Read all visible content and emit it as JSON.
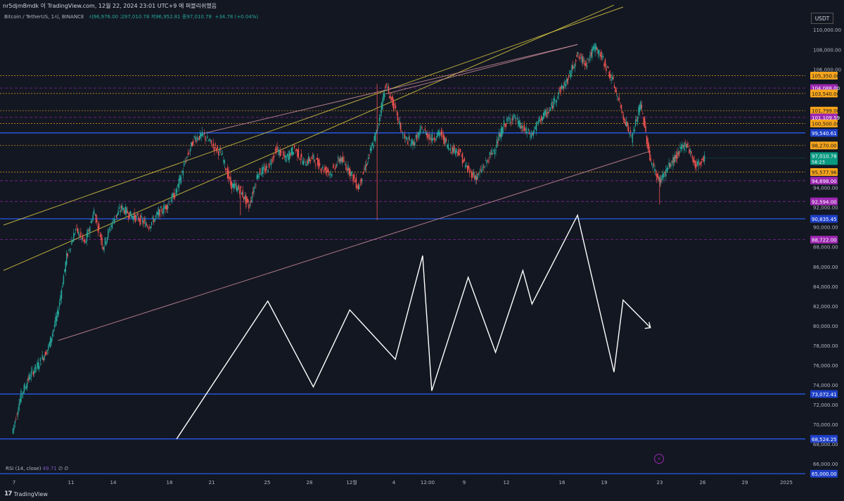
{
  "header": {
    "top_text": "nr5djm8mdk 이 TradingView.com, 12월 22, 2024 23:01 UTC+9 에 퍼블리쉬했음",
    "symbol": "Bitcoin / TetherUS, 1시, BINANCE",
    "ohlc_text": "시96,976.00  고97,010.78  저96,952.81  종97,010.78",
    "change_text": "+34.78 (+0.04%)",
    "currency": "USDT"
  },
  "rsi_label": "RSI (14, close)",
  "rsi_value": "49.71",
  "rsi_extra": "∅ ∅",
  "brand": "TradingView",
  "colors": {
    "background": "#131722",
    "up": "#26a69a",
    "down": "#ef5350",
    "blue_line": "#2962ff",
    "orange": "#f7a51c",
    "purple": "#9c27b0",
    "yellow": "#d4c441",
    "pink": "#c98a98",
    "white": "#ffffff",
    "teal_label": "#089981"
  },
  "chart_data": {
    "type": "line",
    "title": "Bitcoin / TetherUS, 1시, BINANCE",
    "y_axis_ticks": [
      "110,000.00",
      "108,000.00",
      "106,000.00",
      "94,000.00",
      "92,000.00",
      "90,000.00",
      "88,000.00",
      "86,000.00",
      "84,000.00",
      "82,000.00",
      "80,000.00",
      "78,000.00",
      "76,000.00",
      "74,000.00",
      "72,000.00",
      "70,000.00",
      "68,000.00",
      "66,000.00"
    ],
    "x_axis_ticks": [
      "7",
      "11",
      "14",
      "18",
      "21",
      "25",
      "28",
      "12월",
      "4",
      "12:00",
      "9",
      "12",
      "16",
      "19",
      "23",
      "26",
      "29",
      "2025"
    ],
    "current_price": {
      "label": "97,010.78",
      "countdown": "58:23",
      "value": 97010.78
    },
    "horizontal_levels": [
      {
        "label": "105,350.00",
        "value": 105350,
        "style": "dotted",
        "color": "orange"
      },
      {
        "label": "104,088.00",
        "value": 104088,
        "style": "dashed",
        "color": "purple"
      },
      {
        "label": "103,540.00",
        "value": 103540,
        "style": "dotted",
        "color": "orange"
      },
      {
        "label": "101,799.00",
        "value": 101799,
        "style": "dotted",
        "color": "orange"
      },
      {
        "label": "101,109.59",
        "value": 101109.59,
        "style": "dashed",
        "color": "purple"
      },
      {
        "label": "100,500.00",
        "value": 100500,
        "style": "dotted",
        "color": "orange"
      },
      {
        "label": "99,540.61",
        "value": 99540.61,
        "style": "solid",
        "color": "blue"
      },
      {
        "label": "98,270.00",
        "value": 98270,
        "style": "dotted",
        "color": "orange"
      },
      {
        "label": "95,577.96",
        "value": 95577.96,
        "style": "dotted",
        "color": "orange"
      },
      {
        "label": "94,698.00",
        "value": 94698,
        "style": "dashed",
        "color": "purple"
      },
      {
        "label": "92,594.00",
        "value": 92594,
        "style": "dashed",
        "color": "purple"
      },
      {
        "label": "90,835.45",
        "value": 90835.45,
        "style": "solid",
        "color": "blue"
      },
      {
        "label": "88,722.00",
        "value": 88722,
        "style": "dashed",
        "color": "purple"
      },
      {
        "label": "73,072.41",
        "value": 73072.41,
        "style": "solid",
        "color": "blue"
      },
      {
        "label": "68,524.25",
        "value": 68524.25,
        "style": "solid",
        "color": "blue"
      },
      {
        "label": "65,000.00",
        "value": 65000,
        "style": "solid",
        "color": "blue"
      }
    ],
    "price_path": [
      [
        0,
        69100
      ],
      [
        1,
        73000
      ],
      [
        2,
        75000
      ],
      [
        3,
        76200
      ],
      [
        4,
        77800
      ],
      [
        5,
        81200
      ],
      [
        6,
        87000
      ],
      [
        7,
        89800
      ],
      [
        8,
        88300
      ],
      [
        9,
        91600
      ],
      [
        10,
        88000
      ],
      [
        11,
        90500
      ],
      [
        12,
        92000
      ],
      [
        13,
        91200
      ],
      [
        14,
        90800
      ],
      [
        15,
        90100
      ],
      [
        16,
        91300
      ],
      [
        17,
        92200
      ],
      [
        18,
        93500
      ],
      [
        19,
        96600
      ],
      [
        20,
        99000
      ],
      [
        21,
        99300
      ],
      [
        22,
        98300
      ],
      [
        23,
        97400
      ],
      [
        24,
        94300
      ],
      [
        25,
        93800
      ],
      [
        26,
        92100
      ],
      [
        27,
        95500
      ],
      [
        28,
        95900
      ],
      [
        29,
        97900
      ],
      [
        30,
        96900
      ],
      [
        31,
        98000
      ],
      [
        32,
        96500
      ],
      [
        33,
        97000
      ],
      [
        34,
        96000
      ],
      [
        35,
        95500
      ],
      [
        36,
        97000
      ],
      [
        37,
        95800
      ],
      [
        38,
        94000
      ],
      [
        39,
        96700
      ],
      [
        40,
        99600
      ],
      [
        41,
        104500
      ],
      [
        42,
        102000
      ],
      [
        43,
        99000
      ],
      [
        44,
        98500
      ],
      [
        45,
        99900
      ],
      [
        46,
        99000
      ],
      [
        47,
        99500
      ],
      [
        48,
        98000
      ],
      [
        49,
        97700
      ],
      [
        50,
        95800
      ],
      [
        51,
        95000
      ],
      [
        52,
        96500
      ],
      [
        53,
        98000
      ],
      [
        54,
        100400
      ],
      [
        55,
        101200
      ],
      [
        56,
        100000
      ],
      [
        57,
        99300
      ],
      [
        58,
        101000
      ],
      [
        59,
        101800
      ],
      [
        60,
        103700
      ],
      [
        61,
        104900
      ],
      [
        62,
        107400
      ],
      [
        63,
        106600
      ],
      [
        64,
        108300
      ],
      [
        65,
        106700
      ],
      [
        66,
        104600
      ],
      [
        67,
        101500
      ],
      [
        68,
        99000
      ],
      [
        69,
        102500
      ],
      [
        70,
        97000
      ],
      [
        71,
        94600
      ],
      [
        72,
        96000
      ],
      [
        73,
        97300
      ],
      [
        74,
        98600
      ],
      [
        75,
        96200
      ],
      [
        76,
        97010
      ]
    ],
    "projection_path": [
      [
        18,
        68524
      ],
      [
        28,
        82500
      ],
      [
        33,
        73800
      ],
      [
        37,
        81600
      ],
      [
        42,
        76600
      ],
      [
        45,
        87100
      ],
      [
        46,
        73400
      ],
      [
        50,
        84900
      ],
      [
        53,
        77300
      ],
      [
        56,
        85600
      ],
      [
        57,
        82200
      ],
      [
        62,
        91200
      ],
      [
        66,
        75300
      ],
      [
        67,
        82600
      ],
      [
        70,
        79800
      ]
    ],
    "trendlines": [
      {
        "color": "yellow",
        "from": [
          -1,
          85600
        ],
        "to": [
          66,
          112500
        ]
      },
      {
        "color": "yellow",
        "from": [
          -1,
          90200
        ],
        "to": [
          67,
          112300
        ]
      },
      {
        "color": "pink",
        "from": [
          5,
          78500
        ],
        "to": [
          70,
          97700
        ]
      },
      {
        "color": "pink",
        "from": [
          21,
          99500
        ],
        "to": [
          62,
          108500
        ]
      },
      {
        "color": "pink",
        "from": [
          41,
          103500
        ],
        "to": [
          62,
          108500
        ]
      }
    ],
    "x_range": [
      -1,
      87
    ],
    "ylim": [
      64800,
      112300
    ],
    "grid": false
  }
}
